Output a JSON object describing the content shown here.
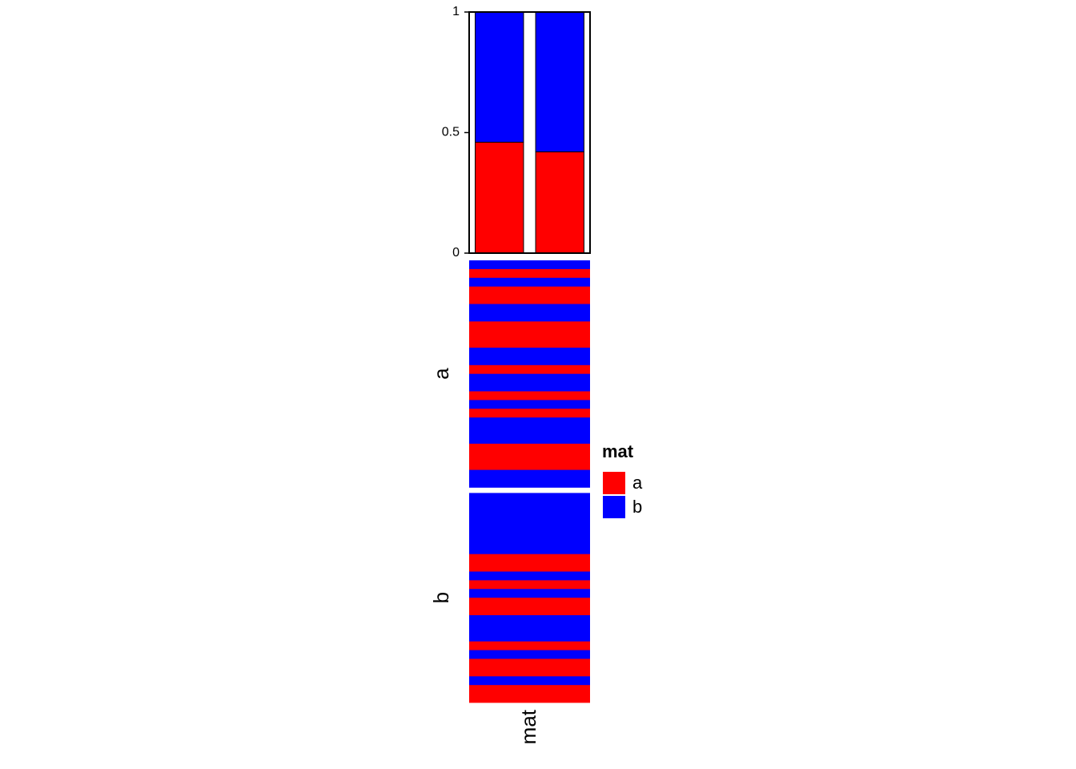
{
  "chart_data": [
    {
      "type": "bar",
      "series": [
        {
          "name": "a",
          "color": "#ff0000",
          "values": [
            0.46,
            0.42
          ]
        },
        {
          "name": "b",
          "color": "#0000ff",
          "values": [
            0.54,
            0.58
          ]
        }
      ],
      "ylim": [
        0,
        1
      ],
      "yticks": [
        0,
        0.5,
        1
      ]
    },
    {
      "type": "heatmap",
      "column_labels": [
        "mat"
      ],
      "colors": {
        "a": "#ff0000",
        "b": "#0000ff"
      },
      "row_groups": [
        {
          "label": "a",
          "values": [
            "b",
            "a",
            "b",
            "a",
            "a",
            "b",
            "b",
            "a",
            "a",
            "a",
            "b",
            "b",
            "a",
            "b",
            "b",
            "a",
            "b",
            "a",
            "b",
            "b",
            "b",
            "a",
            "a",
            "a",
            "b",
            "b"
          ]
        },
        {
          "label": "b",
          "values": [
            "b",
            "b",
            "b",
            "b",
            "b",
            "b",
            "b",
            "a",
            "a",
            "b",
            "a",
            "b",
            "a",
            "a",
            "b",
            "b",
            "b",
            "a",
            "b",
            "a",
            "a",
            "b",
            "a",
            "a"
          ]
        }
      ],
      "legend": {
        "title": "mat",
        "items": [
          {
            "label": "a",
            "color": "#ff0000"
          },
          {
            "label": "b",
            "color": "#0000ff"
          }
        ]
      }
    }
  ]
}
